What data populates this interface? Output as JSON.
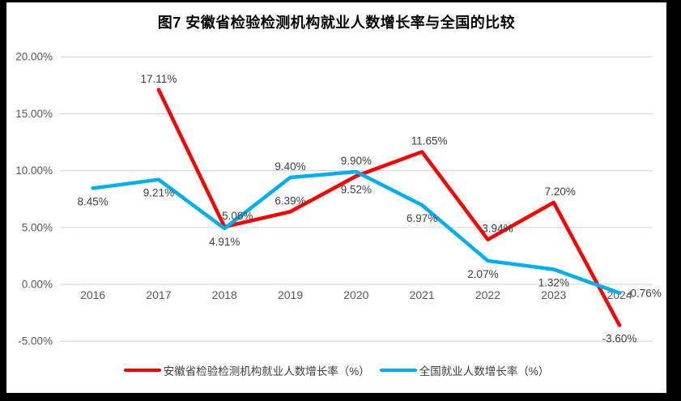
{
  "title": "图7 安徽省检验检测机构就业人数增长率与全国的比较",
  "colors": {
    "frame": "#000000",
    "background": "#ffffff",
    "gridline": "#d9d9d9",
    "axis_text": "#595959",
    "label_text": "#404040",
    "series_red": "#ff0000",
    "series_blue": "#00b0f0"
  },
  "chart_data": {
    "type": "line",
    "title": "图7 安徽省检验检测机构就业人数增长率与全国的比较",
    "categories": [
      "2016",
      "2017",
      "2018",
      "2019",
      "2020",
      "2021",
      "2022",
      "2023",
      "2024"
    ],
    "series": [
      {
        "name": "安徽省检验检测机构就业人数增长率（%）",
        "color": "#ff0000",
        "values": [
          null,
          17.11,
          5.06,
          6.39,
          9.52,
          11.65,
          3.94,
          7.2,
          -3.6
        ],
        "labels": [
          null,
          "17.11%",
          "5.06%",
          "6.39%",
          "9.52%",
          "11.65%",
          "3.94%",
          "7.20%",
          "-3.60%"
        ],
        "label_positions": [
          null,
          "above",
          "above",
          "above",
          "below",
          "above",
          "above",
          "above",
          "below"
        ],
        "label_dx": [
          0,
          0,
          16,
          0,
          0,
          9,
          12,
          8,
          0
        ]
      },
      {
        "name": "全国就业人数增长率（%）",
        "color": "#00b0f0",
        "values": [
          8.45,
          9.21,
          4.91,
          9.4,
          9.9,
          6.97,
          2.07,
          1.32,
          -0.76
        ],
        "labels": [
          "8.45%",
          "9.21%",
          "4.91%",
          "9.40%",
          "9.90%",
          "6.97%",
          "2.07%",
          "1.32%",
          "-0.76%"
        ],
        "label_positions": [
          "below",
          "below",
          "below",
          "above",
          "above",
          "below",
          "below",
          "below",
          "right"
        ],
        "label_dx": [
          0,
          0,
          0,
          0,
          0,
          0,
          -6,
          0,
          0
        ]
      }
    ],
    "ylim": [
      -5,
      20
    ],
    "y_ticks": [
      {
        "value": 20,
        "label": "20.00%"
      },
      {
        "value": 15,
        "label": "15.00%"
      },
      {
        "value": 10,
        "label": "10.00%"
      },
      {
        "value": 5,
        "label": "5.00%"
      },
      {
        "value": 0,
        "label": "0.00%"
      },
      {
        "value": -5,
        "label": "-5.00%"
      }
    ],
    "grid": true,
    "legend_position": "bottom"
  }
}
